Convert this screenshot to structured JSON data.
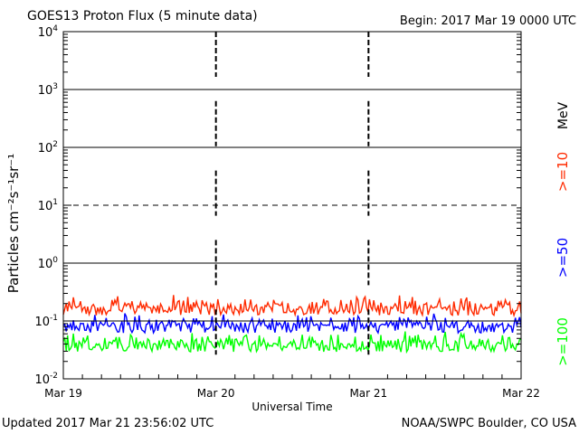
{
  "header": {
    "title": "GOES13 Proton Flux (5 minute data)",
    "begin": "Begin: 2017 Mar 19 0000 UTC"
  },
  "footer": {
    "updated": "Updated 2017 Mar 21 23:56:02 UTC",
    "credit": "NOAA/SWPC Boulder, CO USA"
  },
  "chart_data": {
    "type": "line",
    "title": "GOES13 Proton Flux (5 minute data)",
    "xlabel": "Universal Time",
    "ylabel": "Particles cm⁻²s⁻¹sr⁻¹",
    "yscale": "log",
    "ylim": [
      0.01,
      10000
    ],
    "y_ticks": [
      {
        "base": "10",
        "exp": "-2",
        "value": 0.01
      },
      {
        "base": "10",
        "exp": "-1",
        "value": 0.1
      },
      {
        "base": "10",
        "exp": "0",
        "value": 1
      },
      {
        "base": "10",
        "exp": "1",
        "value": 10
      },
      {
        "base": "10",
        "exp": "2",
        "value": 100
      },
      {
        "base": "10",
        "exp": "3",
        "value": 1000
      },
      {
        "base": "10",
        "exp": "4",
        "value": 10000
      }
    ],
    "x_ticks": [
      "Mar 19",
      "Mar 20",
      "Mar 21",
      "Mar 22"
    ],
    "xlim": [
      "2017-03-19 00:00",
      "2017-03-22 00:00"
    ],
    "thresholds": [
      {
        "value": 10,
        "style": "dashed"
      }
    ],
    "units_label": "MeV",
    "series": [
      {
        "name": ">=10",
        "color": "#ff2a00",
        "typical_range": [
          0.12,
          0.3
        ],
        "approx_mean": 0.17
      },
      {
        "name": ">=50",
        "color": "#0000ff",
        "typical_range": [
          0.06,
          0.14
        ],
        "approx_mean": 0.085
      },
      {
        "name": ">=100",
        "color": "#00ff00",
        "typical_range": [
          0.028,
          0.07
        ],
        "approx_mean": 0.04
      }
    ],
    "grid": true
  }
}
